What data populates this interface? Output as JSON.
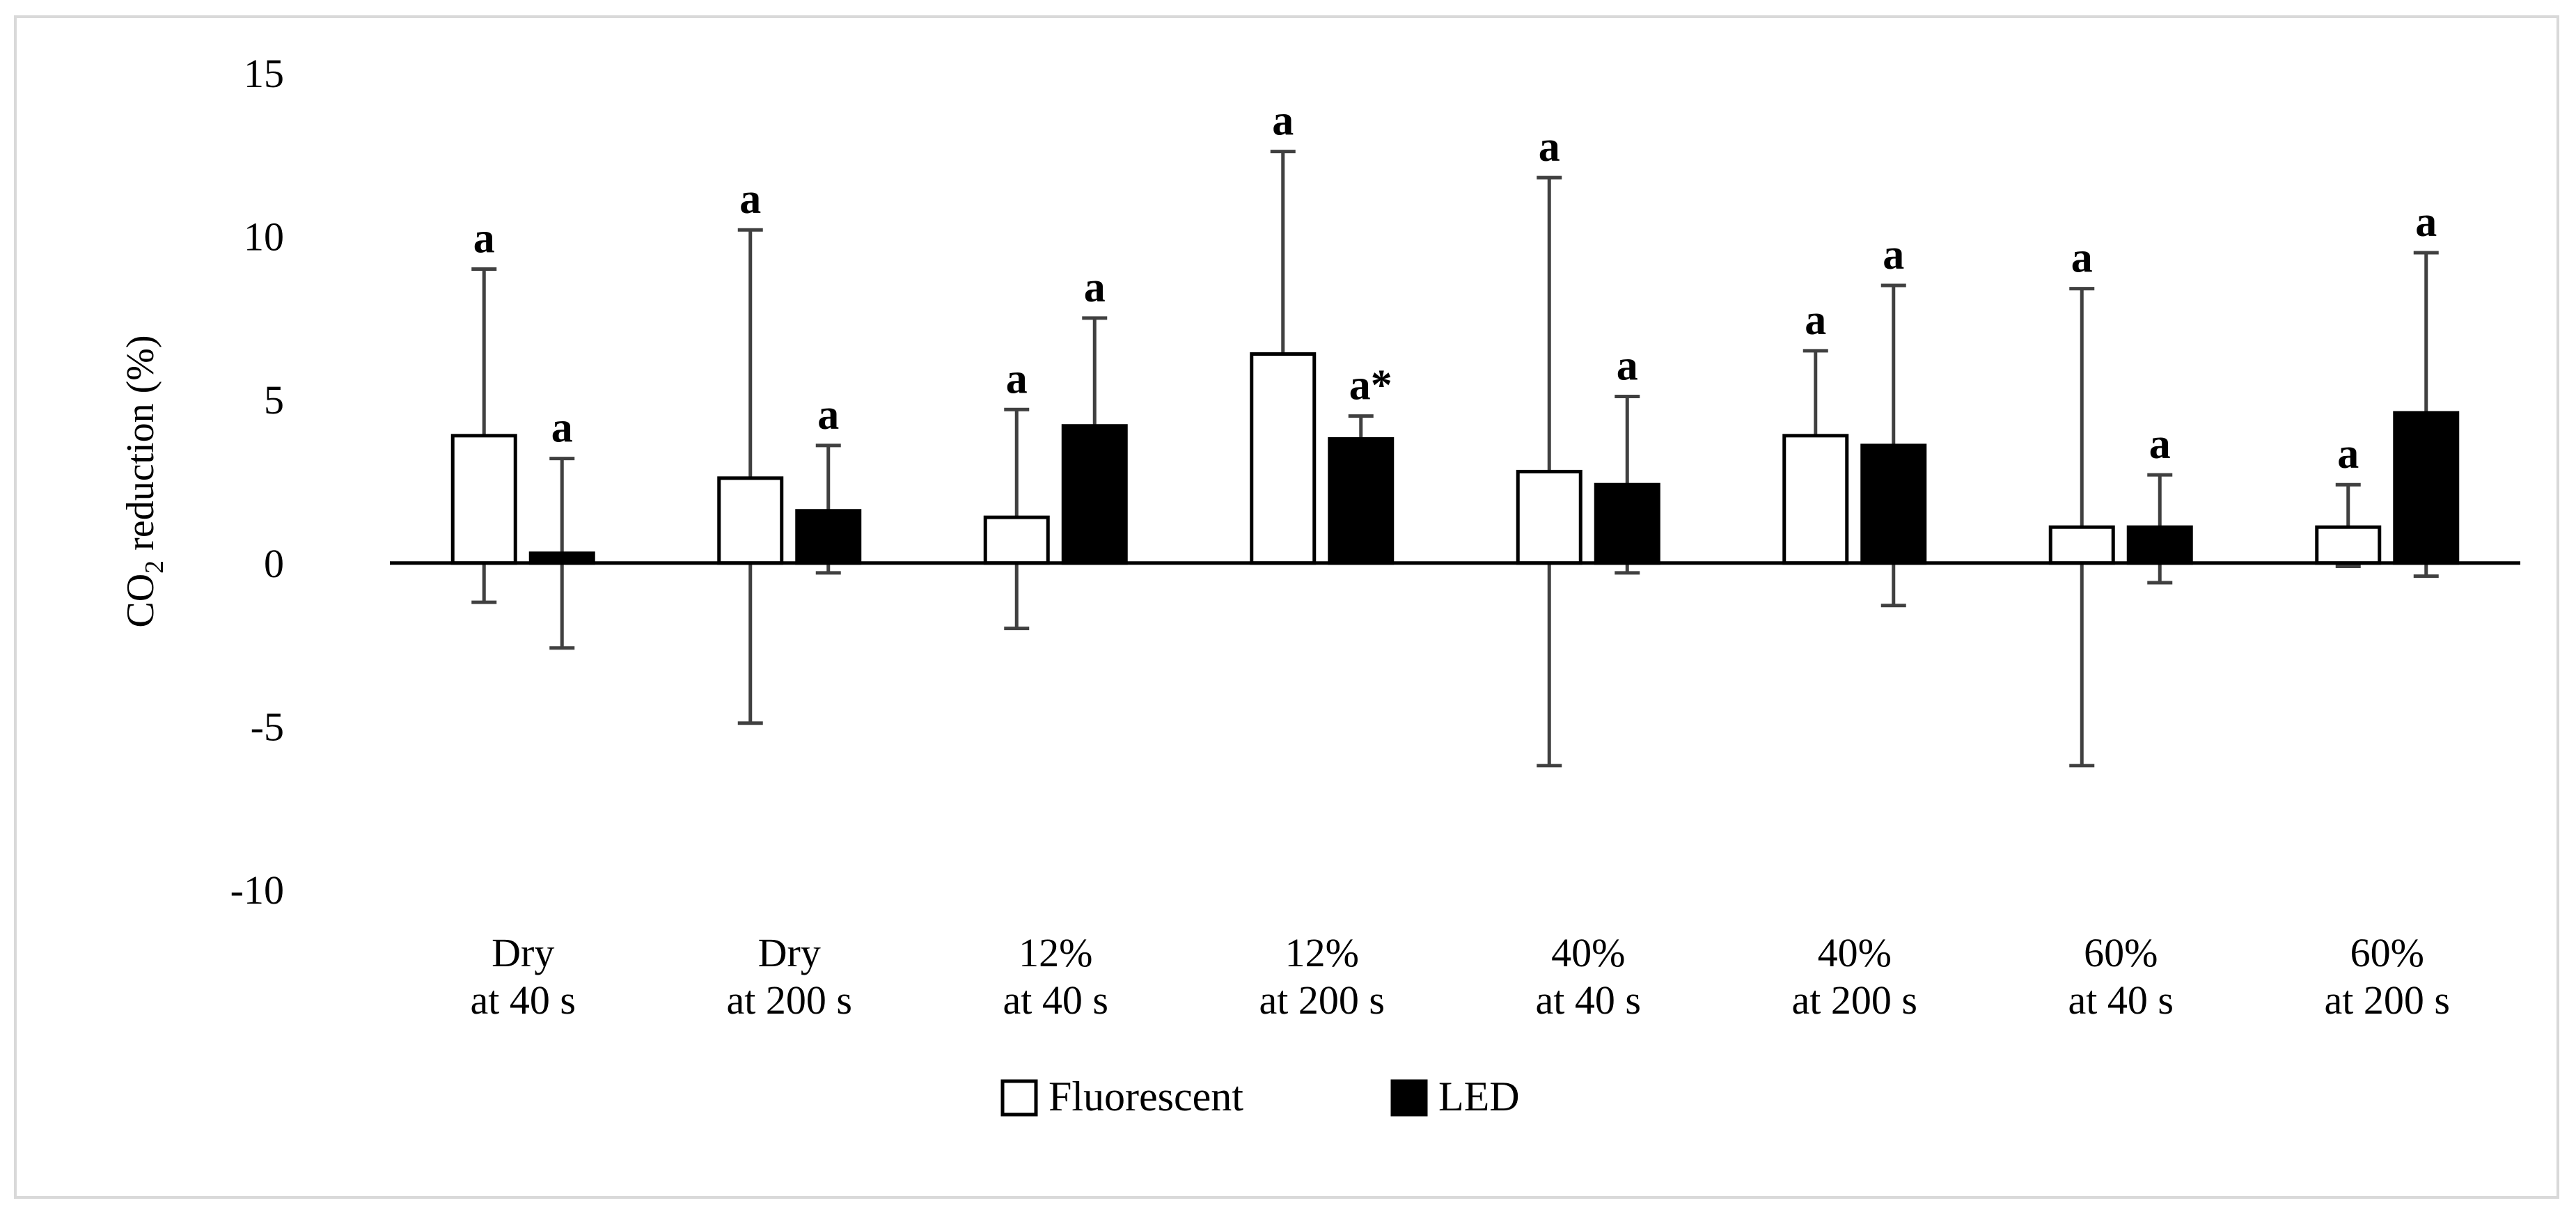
{
  "chart_data": {
    "type": "bar",
    "title": "",
    "xlabel": "",
    "ylabel_main": "CO",
    "ylabel_sub": "2",
    "ylabel_rest": " reduction (%)",
    "ylim": [
      -10,
      15
    ],
    "yticks": [
      15,
      10,
      5,
      0,
      -5,
      -10
    ],
    "categories": [
      [
        "Dry",
        "at 40 s"
      ],
      [
        "Dry",
        "at 200 s"
      ],
      [
        "12%",
        "at 40 s"
      ],
      [
        "12%",
        "at 200 s"
      ],
      [
        "40%",
        "at 40 s"
      ],
      [
        "40%",
        "at 200 s"
      ],
      [
        "60%",
        "at 40 s"
      ],
      [
        "60%",
        "at 200 s"
      ]
    ],
    "series": [
      {
        "name": "Fluorescent",
        "fill": "#ffffff",
        "values": [
          3.9,
          2.6,
          1.4,
          6.4,
          2.8,
          3.9,
          1.1,
          1.1
        ],
        "err_low": [
          -1.2,
          -4.9,
          -2.0,
          0.3,
          -6.2,
          1.2,
          -6.2,
          -0.1
        ],
        "err_high": [
          9.0,
          10.2,
          4.7,
          12.6,
          11.8,
          6.5,
          8.4,
          2.4
        ],
        "labels": [
          "a",
          "a",
          "a",
          "a",
          "a",
          "a",
          "a",
          "a"
        ]
      },
      {
        "name": "LED",
        "fill": "#000000",
        "values": [
          0.3,
          1.6,
          4.2,
          3.8,
          2.4,
          3.6,
          1.1,
          4.6
        ],
        "err_low": [
          -2.6,
          -0.3,
          0.9,
          3.1,
          -0.3,
          -1.3,
          -0.6,
          -0.4
        ],
        "err_high": [
          3.2,
          3.6,
          7.5,
          4.5,
          5.1,
          8.5,
          2.7,
          9.5
        ],
        "labels": [
          "a",
          "a",
          "a",
          "a*",
          "a",
          "a",
          "a",
          "a"
        ]
      }
    ],
    "legend_position": "bottom-center"
  }
}
